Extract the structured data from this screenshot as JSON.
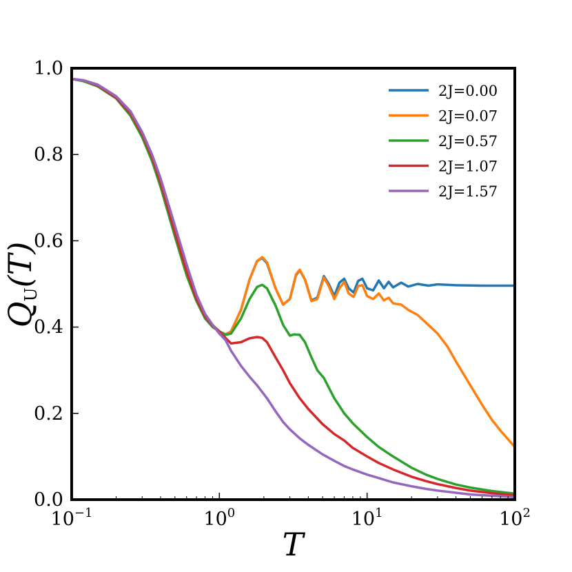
{
  "chart_data": {
    "type": "line",
    "xscale": "log",
    "xlim": [
      0.1,
      100
    ],
    "ylim": [
      0.0,
      1.0
    ],
    "xlabel": "T",
    "ylabel": "Q_U(T)",
    "ylabel_parts": {
      "main": "Q",
      "sub": "U",
      "arg": "(T)"
    },
    "x_ticks": [
      {
        "base": "10",
        "exp": "−1",
        "value": 0.1
      },
      {
        "base": "10",
        "exp": "0",
        "value": 1
      },
      {
        "base": "10",
        "exp": "1",
        "value": 10
      },
      {
        "base": "10",
        "exp": "2",
        "value": 100
      }
    ],
    "y_ticks": [
      "0.0",
      "0.2",
      "0.4",
      "0.6",
      "0.8",
      "1.0"
    ],
    "y_tick_values": [
      0.0,
      0.2,
      0.4,
      0.6,
      0.8,
      1.0
    ],
    "grid": false,
    "legend_position": "top-right",
    "series": [
      {
        "name": "2J=0.00",
        "color": "#1f77b4",
        "points": [
          [
            0.1,
            0.975
          ],
          [
            0.12,
            0.972
          ],
          [
            0.15,
            0.962
          ],
          [
            0.2,
            0.935
          ],
          [
            0.25,
            0.9
          ],
          [
            0.3,
            0.85
          ],
          [
            0.35,
            0.795
          ],
          [
            0.4,
            0.735
          ],
          [
            0.5,
            0.625
          ],
          [
            0.6,
            0.535
          ],
          [
            0.7,
            0.47
          ],
          [
            0.8,
            0.43
          ],
          [
            0.9,
            0.405
          ],
          [
            1.0,
            0.39
          ],
          [
            1.1,
            0.383
          ],
          [
            1.2,
            0.39
          ],
          [
            1.4,
            0.44
          ],
          [
            1.6,
            0.51
          ],
          [
            1.8,
            0.553
          ],
          [
            1.95,
            0.56
          ],
          [
            2.1,
            0.548
          ],
          [
            2.4,
            0.49
          ],
          [
            2.7,
            0.452
          ],
          [
            3.0,
            0.465
          ],
          [
            3.3,
            0.52
          ],
          [
            3.5,
            0.532
          ],
          [
            3.8,
            0.51
          ],
          [
            4.2,
            0.462
          ],
          [
            4.6,
            0.468
          ],
          [
            5.1,
            0.518
          ],
          [
            5.5,
            0.5
          ],
          [
            6.0,
            0.472
          ],
          [
            6.5,
            0.503
          ],
          [
            7.0,
            0.512
          ],
          [
            7.5,
            0.49
          ],
          [
            8.1,
            0.48
          ],
          [
            8.7,
            0.507
          ],
          [
            9.3,
            0.512
          ],
          [
            10,
            0.49
          ],
          [
            11,
            0.485
          ],
          [
            12,
            0.508
          ],
          [
            13,
            0.49
          ],
          [
            14,
            0.505
          ],
          [
            15,
            0.492
          ],
          [
            17,
            0.503
          ],
          [
            19,
            0.494
          ],
          [
            22,
            0.5
          ],
          [
            26,
            0.496
          ],
          [
            30,
            0.499
          ],
          [
            40,
            0.497
          ],
          [
            60,
            0.496
          ],
          [
            100,
            0.496
          ]
        ]
      },
      {
        "name": "2J=0.07",
        "color": "#ff7f0e",
        "points": [
          [
            0.1,
            0.975
          ],
          [
            0.12,
            0.972
          ],
          [
            0.15,
            0.962
          ],
          [
            0.2,
            0.935
          ],
          [
            0.25,
            0.9
          ],
          [
            0.3,
            0.85
          ],
          [
            0.35,
            0.795
          ],
          [
            0.4,
            0.735
          ],
          [
            0.5,
            0.625
          ],
          [
            0.6,
            0.535
          ],
          [
            0.7,
            0.47
          ],
          [
            0.8,
            0.43
          ],
          [
            0.9,
            0.405
          ],
          [
            1.0,
            0.39
          ],
          [
            1.1,
            0.383
          ],
          [
            1.2,
            0.39
          ],
          [
            1.4,
            0.44
          ],
          [
            1.6,
            0.51
          ],
          [
            1.8,
            0.553
          ],
          [
            1.95,
            0.562
          ],
          [
            2.1,
            0.55
          ],
          [
            2.4,
            0.49
          ],
          [
            2.7,
            0.452
          ],
          [
            3.0,
            0.465
          ],
          [
            3.3,
            0.522
          ],
          [
            3.5,
            0.533
          ],
          [
            3.8,
            0.51
          ],
          [
            4.2,
            0.46
          ],
          [
            4.6,
            0.465
          ],
          [
            5.1,
            0.515
          ],
          [
            5.5,
            0.495
          ],
          [
            6.0,
            0.465
          ],
          [
            6.5,
            0.49
          ],
          [
            7.0,
            0.505
          ],
          [
            7.5,
            0.478
          ],
          [
            8.1,
            0.47
          ],
          [
            8.7,
            0.495
          ],
          [
            9.3,
            0.497
          ],
          [
            10,
            0.472
          ],
          [
            11,
            0.465
          ],
          [
            12,
            0.478
          ],
          [
            13,
            0.462
          ],
          [
            14,
            0.468
          ],
          [
            15,
            0.455
          ],
          [
            17,
            0.452
          ],
          [
            19,
            0.44
          ],
          [
            22,
            0.428
          ],
          [
            26,
            0.405
          ],
          [
            30,
            0.385
          ],
          [
            35,
            0.355
          ],
          [
            40,
            0.32
          ],
          [
            50,
            0.265
          ],
          [
            60,
            0.22
          ],
          [
            70,
            0.185
          ],
          [
            80,
            0.16
          ],
          [
            90,
            0.14
          ],
          [
            100,
            0.122
          ]
        ]
      },
      {
        "name": "2J=0.57",
        "color": "#2ca02c",
        "points": [
          [
            0.1,
            0.975
          ],
          [
            0.12,
            0.97
          ],
          [
            0.15,
            0.958
          ],
          [
            0.2,
            0.93
          ],
          [
            0.25,
            0.89
          ],
          [
            0.3,
            0.84
          ],
          [
            0.35,
            0.785
          ],
          [
            0.4,
            0.725
          ],
          [
            0.5,
            0.61
          ],
          [
            0.6,
            0.52
          ],
          [
            0.7,
            0.46
          ],
          [
            0.8,
            0.42
          ],
          [
            0.9,
            0.4
          ],
          [
            1.0,
            0.39
          ],
          [
            1.1,
            0.382
          ],
          [
            1.2,
            0.385
          ],
          [
            1.4,
            0.42
          ],
          [
            1.6,
            0.465
          ],
          [
            1.8,
            0.493
          ],
          [
            1.95,
            0.498
          ],
          [
            2.1,
            0.49
          ],
          [
            2.4,
            0.45
          ],
          [
            2.7,
            0.405
          ],
          [
            3.0,
            0.38
          ],
          [
            3.2,
            0.383
          ],
          [
            3.5,
            0.382
          ],
          [
            3.8,
            0.365
          ],
          [
            4.2,
            0.33
          ],
          [
            4.6,
            0.3
          ],
          [
            5.1,
            0.282
          ],
          [
            5.5,
            0.26
          ],
          [
            6.0,
            0.235
          ],
          [
            7.0,
            0.2
          ],
          [
            8.0,
            0.177
          ],
          [
            10,
            0.145
          ],
          [
            12,
            0.122
          ],
          [
            15,
            0.1
          ],
          [
            20,
            0.074
          ],
          [
            25,
            0.058
          ],
          [
            30,
            0.048
          ],
          [
            40,
            0.035
          ],
          [
            50,
            0.028
          ],
          [
            70,
            0.02
          ],
          [
            100,
            0.014
          ]
        ]
      },
      {
        "name": "2J=1.07",
        "color": "#d62728",
        "points": [
          [
            0.1,
            0.975
          ],
          [
            0.12,
            0.972
          ],
          [
            0.15,
            0.96
          ],
          [
            0.2,
            0.932
          ],
          [
            0.25,
            0.895
          ],
          [
            0.3,
            0.847
          ],
          [
            0.35,
            0.793
          ],
          [
            0.4,
            0.735
          ],
          [
            0.5,
            0.62
          ],
          [
            0.6,
            0.53
          ],
          [
            0.7,
            0.465
          ],
          [
            0.8,
            0.425
          ],
          [
            0.9,
            0.403
          ],
          [
            1.0,
            0.39
          ],
          [
            1.1,
            0.375
          ],
          [
            1.2,
            0.362
          ],
          [
            1.4,
            0.365
          ],
          [
            1.6,
            0.374
          ],
          [
            1.8,
            0.377
          ],
          [
            1.95,
            0.375
          ],
          [
            2.1,
            0.365
          ],
          [
            2.4,
            0.33
          ],
          [
            2.7,
            0.3
          ],
          [
            3.0,
            0.27
          ],
          [
            3.5,
            0.235
          ],
          [
            4.0,
            0.21
          ],
          [
            5.0,
            0.175
          ],
          [
            6.0,
            0.152
          ],
          [
            7.0,
            0.137
          ],
          [
            8.0,
            0.12
          ],
          [
            10,
            0.1
          ],
          [
            12,
            0.085
          ],
          [
            15,
            0.07
          ],
          [
            20,
            0.053
          ],
          [
            25,
            0.043
          ],
          [
            30,
            0.036
          ],
          [
            40,
            0.027
          ],
          [
            50,
            0.021
          ],
          [
            70,
            0.015
          ],
          [
            100,
            0.01
          ]
        ]
      },
      {
        "name": "2J=1.57",
        "color": "#9467bd",
        "points": [
          [
            0.1,
            0.975
          ],
          [
            0.12,
            0.972
          ],
          [
            0.15,
            0.962
          ],
          [
            0.2,
            0.935
          ],
          [
            0.25,
            0.9
          ],
          [
            0.3,
            0.852
          ],
          [
            0.35,
            0.8
          ],
          [
            0.4,
            0.745
          ],
          [
            0.5,
            0.635
          ],
          [
            0.6,
            0.545
          ],
          [
            0.7,
            0.475
          ],
          [
            0.8,
            0.43
          ],
          [
            0.9,
            0.405
          ],
          [
            1.0,
            0.385
          ],
          [
            1.1,
            0.37
          ],
          [
            1.2,
            0.345
          ],
          [
            1.4,
            0.31
          ],
          [
            1.6,
            0.285
          ],
          [
            1.8,
            0.265
          ],
          [
            2.1,
            0.235
          ],
          [
            2.4,
            0.205
          ],
          [
            2.7,
            0.18
          ],
          [
            3.0,
            0.163
          ],
          [
            3.5,
            0.142
          ],
          [
            4.0,
            0.127
          ],
          [
            5.0,
            0.105
          ],
          [
            6.0,
            0.09
          ],
          [
            7.0,
            0.078
          ],
          [
            8.0,
            0.07
          ],
          [
            10,
            0.058
          ],
          [
            12,
            0.05
          ],
          [
            15,
            0.04
          ],
          [
            20,
            0.031
          ],
          [
            25,
            0.025
          ],
          [
            30,
            0.021
          ],
          [
            40,
            0.016
          ],
          [
            50,
            0.012
          ],
          [
            70,
            0.009
          ],
          [
            100,
            0.006
          ]
        ]
      }
    ]
  }
}
